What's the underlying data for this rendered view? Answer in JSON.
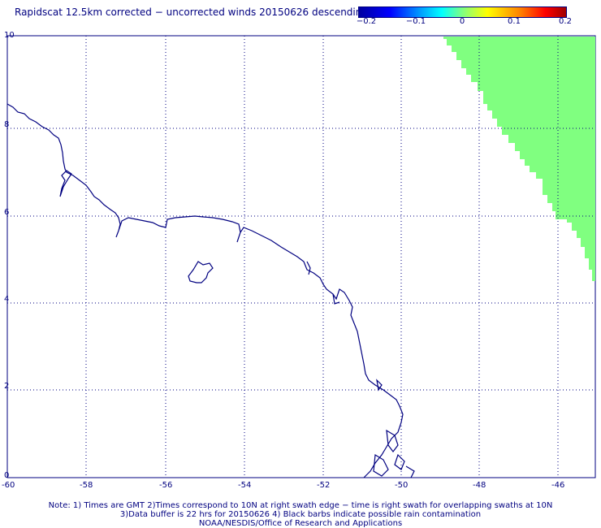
{
  "title": "Rapidscat 12.5km corrected − uncorrected winds 20150626 descending",
  "colorbar": {
    "ticks": [
      "−0.2",
      "−0.1",
      "0",
      "0.1",
      "0.2"
    ],
    "range": [
      -0.2,
      0.2
    ]
  },
  "map": {
    "lon_range": [
      -60,
      -45.4
    ],
    "lat_range": [
      0,
      10
    ],
    "x_ticks": [
      "-60",
      "-58",
      "-56",
      "-54",
      "-52",
      "-50",
      "-48",
      "-46"
    ],
    "y_ticks": [
      "10",
      "8",
      "6",
      "4",
      "2",
      "0"
    ],
    "grid": true,
    "swath_color": "#80ff80",
    "coast_color": "#000080",
    "grid_color": "#000080"
  },
  "notes": {
    "line1": "Note: 1) Times are GMT 2)Times correspond to 10N at right swath edge − time is right swath for overlapping swaths at 10N",
    "line2": "3)Data buffer is 22 hrs for 20150626 4) Black barbs indicate possible rain contamination",
    "line3": "NOAA/NESDIS/Office of Research and Applications"
  }
}
